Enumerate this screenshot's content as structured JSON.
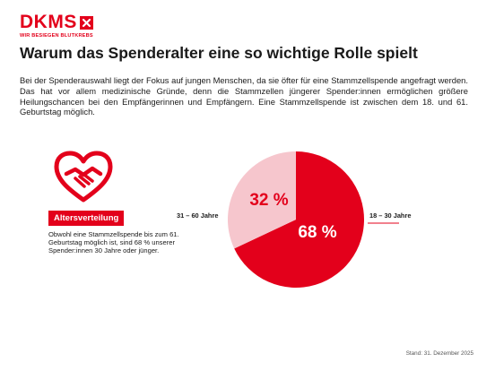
{
  "brand": {
    "name": "DKMS",
    "tagline": "WIR BESIEGEN BLUTKREBS",
    "color": "#e3001b"
  },
  "title": "Warum das Spenderalter eine so wichtige Rolle spielt",
  "intro": "Bei der Spenderauswahl liegt der Fokus auf jungen Menschen, da sie öfter für eine Stammzellspende angefragt werden. Das hat vor allem medizinische Gründe, denn die Stammzellen jüngerer Spender:innen ermöglichen größere Heilungschancen bei den Empfängerinnen und Empfängern. Eine Stammzellspende ist zwischen dem 18. und 61. Geburtstag möglich.",
  "icon": "heart-handshake-icon",
  "badge": "Altersverteilung",
  "note": "Obwohl eine Stammzellspende bis zum 61. Geburtstag möglich ist, sind 68 % unserer Spender:innen 30 Jahre oder jünger.",
  "stand": "Stand: 31. Dezember 2025",
  "chart_data": {
    "type": "pie",
    "categories": [
      "18 – 30 Jahre",
      "31 – 60 Jahre"
    ],
    "values": [
      68,
      32
    ],
    "value_labels": [
      "68 %",
      "32 %"
    ],
    "colors": [
      "#e3001b",
      "#f6c6cd"
    ],
    "label_colors": [
      "#ffffff",
      "#e3001b"
    ],
    "title": "",
    "legend": "none"
  }
}
